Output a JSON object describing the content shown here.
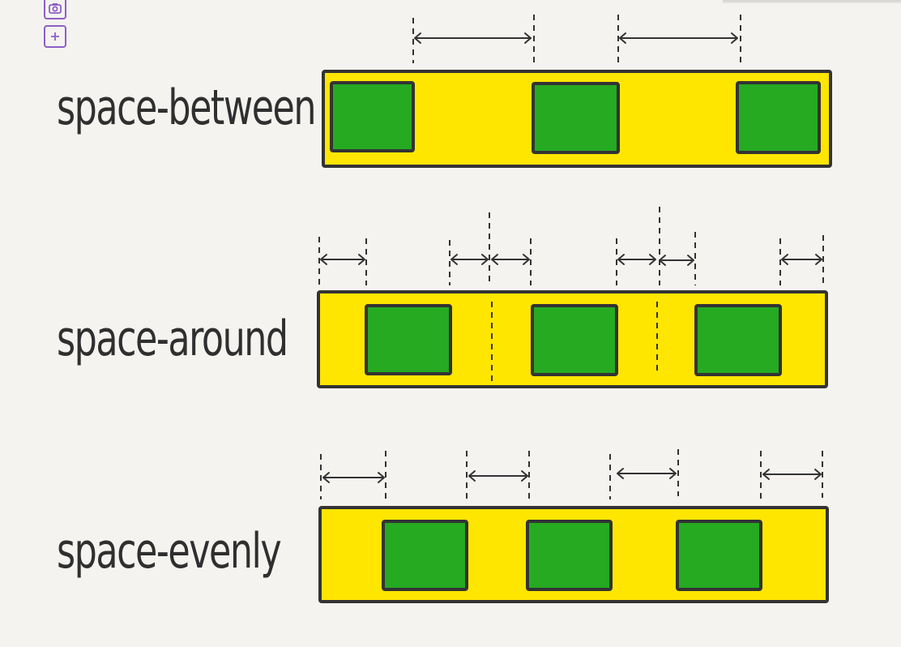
{
  "toolbar": {
    "camera_icon": "camera-icon",
    "add_icon": "plus-icon"
  },
  "colors": {
    "container_fill": "#ffe600",
    "item_fill": "#25aa22",
    "stroke": "#333333",
    "background": "#f4f3f0",
    "tool_accent": "#8e5fc4"
  },
  "rows": [
    {
      "key": "between",
      "label": "space-between"
    },
    {
      "key": "around",
      "label": "space-around"
    },
    {
      "key": "evenly",
      "label": "space-evenly"
    }
  ]
}
